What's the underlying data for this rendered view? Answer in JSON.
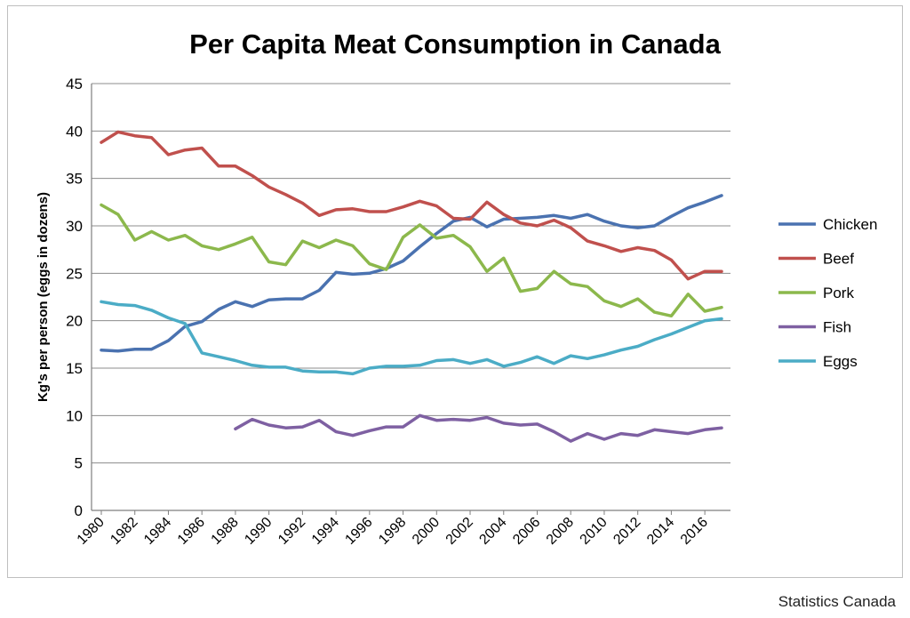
{
  "credit": "Statistics Canada",
  "chart_data": {
    "type": "line",
    "title": "Per Capita Meat Consumption in Canada",
    "xlabel": "",
    "ylabel": "Kg's per person (eggs in dozens)",
    "ylim": [
      0,
      45
    ],
    "yticks": [
      0,
      5,
      10,
      15,
      20,
      25,
      30,
      35,
      40,
      45
    ],
    "xlim": [
      1980,
      2017
    ],
    "xticks": [
      "1980",
      "1982",
      "1984",
      "1986",
      "1988",
      "1990",
      "1992",
      "1994",
      "1996",
      "1998",
      "2000",
      "2002",
      "2004",
      "2006",
      "2008",
      "2010",
      "2012",
      "2014",
      "2016"
    ],
    "grid": true,
    "legend_position": "right",
    "x": [
      1980,
      1981,
      1982,
      1983,
      1984,
      1985,
      1986,
      1987,
      1988,
      1989,
      1990,
      1991,
      1992,
      1993,
      1994,
      1995,
      1996,
      1997,
      1998,
      1999,
      2000,
      2001,
      2002,
      2003,
      2004,
      2005,
      2006,
      2007,
      2008,
      2009,
      2010,
      2011,
      2012,
      2013,
      2014,
      2015,
      2016,
      2017
    ],
    "series": [
      {
        "name": "Chicken",
        "color": "#4a72b0",
        "values": [
          16.9,
          16.8,
          17.0,
          17.0,
          17.9,
          19.4,
          19.9,
          21.2,
          22.0,
          21.5,
          22.2,
          22.3,
          22.3,
          23.2,
          25.1,
          24.9,
          25.0,
          25.5,
          26.3,
          27.8,
          29.2,
          30.5,
          30.9,
          29.9,
          30.7,
          30.8,
          30.9,
          31.1,
          30.8,
          31.2,
          30.5,
          30.0,
          29.8,
          30.0,
          31.0,
          31.9,
          32.5,
          33.2
        ]
      },
      {
        "name": "Beef",
        "color": "#c0504d",
        "values": [
          38.8,
          39.9,
          39.5,
          39.3,
          37.5,
          38.0,
          38.2,
          36.3,
          36.3,
          35.3,
          34.1,
          33.3,
          32.4,
          31.1,
          31.7,
          31.8,
          31.5,
          31.5,
          32.0,
          32.6,
          32.1,
          30.8,
          30.7,
          32.5,
          31.2,
          30.3,
          30.0,
          30.6,
          29.8,
          28.4,
          27.9,
          27.3,
          27.7,
          27.4,
          26.4,
          24.4,
          25.2,
          25.2
        ]
      },
      {
        "name": "Pork",
        "color": "#8cb84c",
        "values": [
          32.2,
          31.2,
          28.5,
          29.4,
          28.5,
          29.0,
          27.9,
          27.5,
          28.1,
          28.8,
          26.2,
          25.9,
          28.4,
          27.7,
          28.5,
          27.9,
          26.0,
          25.4,
          28.8,
          30.1,
          28.7,
          29.0,
          27.8,
          25.2,
          26.6,
          23.1,
          23.4,
          25.2,
          23.9,
          23.6,
          22.1,
          21.5,
          22.3,
          20.9,
          20.5,
          22.8,
          21.0,
          21.4
        ]
      },
      {
        "name": "Fish",
        "color": "#7e60a2",
        "values": [
          null,
          null,
          null,
          null,
          null,
          null,
          null,
          null,
          8.6,
          9.6,
          9.0,
          8.7,
          8.8,
          9.5,
          8.3,
          7.9,
          8.4,
          8.8,
          8.8,
          10.0,
          9.5,
          9.6,
          9.5,
          9.8,
          9.2,
          9.0,
          9.1,
          8.3,
          7.3,
          8.1,
          7.5,
          8.1,
          7.9,
          8.5,
          8.3,
          8.1,
          8.5,
          8.7
        ]
      },
      {
        "name": "Eggs",
        "color": "#4bacc6",
        "values": [
          22.0,
          21.7,
          21.6,
          21.1,
          20.3,
          19.7,
          16.6,
          16.2,
          15.8,
          15.3,
          15.1,
          15.1,
          14.7,
          14.6,
          14.6,
          14.4,
          15.0,
          15.2,
          15.2,
          15.3,
          15.8,
          15.9,
          15.5,
          15.9,
          15.2,
          15.6,
          16.2,
          15.5,
          16.3,
          16.0,
          16.4,
          16.9,
          17.3,
          18.0,
          18.6,
          19.3,
          20.0,
          20.2
        ]
      }
    ]
  }
}
